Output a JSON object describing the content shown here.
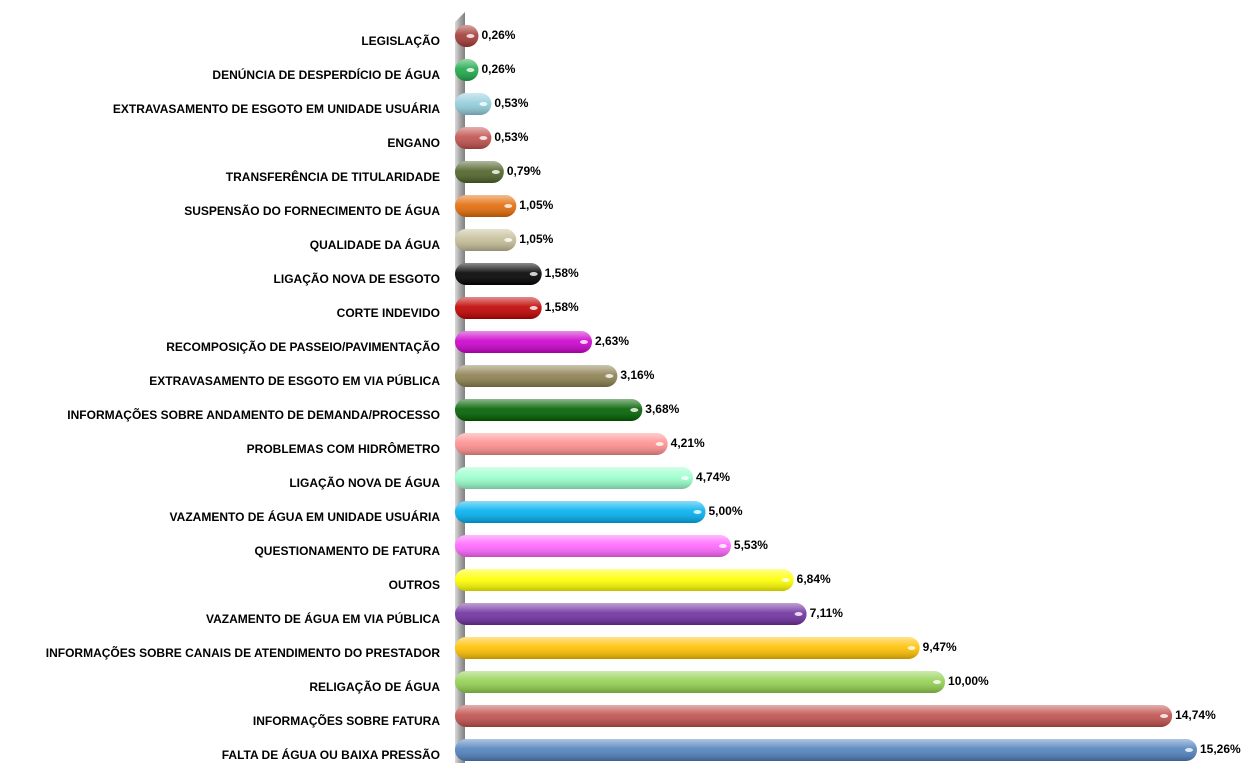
{
  "chart_data": {
    "type": "bar",
    "orientation": "horizontal",
    "categories": [
      "LEGISLAÇÃO",
      "DENÚNCIA DE DESPERDÍCIO DE ÁGUA",
      "EXTRAVASAMENTO DE ESGOTO EM UNIDADE USUÁRIA",
      "ENGANO",
      "TRANSFERÊNCIA DE TITULARIDADE",
      "SUSPENSÃO DO FORNECIMENTO DE ÁGUA",
      "QUALIDADE DA ÁGUA",
      "LIGAÇÃO NOVA DE ESGOTO",
      "CORTE INDEVIDO",
      "RECOMPOSIÇÃO DE PASSEIO/PAVIMENTAÇÃO",
      "EXTRAVASAMENTO DE ESGOTO EM VIA PÚBLICA",
      "INFORMAÇÕES SOBRE ANDAMENTO DE DEMANDA/PROCESSO",
      "PROBLEMAS COM HIDRÔMETRO",
      "LIGAÇÃO NOVA DE ÁGUA",
      "VAZAMENTO DE ÁGUA EM UNIDADE USUÁRIA",
      "QUESTIONAMENTO DE FATURA",
      "OUTROS",
      "VAZAMENTO DE ÁGUA EM VIA PÚBLICA",
      "INFORMAÇÕES SOBRE CANAIS DE ATENDIMENTO DO PRESTADOR",
      "RELIGAÇÃO DE ÁGUA",
      "INFORMAÇÕES SOBRE FATURA",
      "FALTA DE ÁGUA OU BAIXA PRESSÃO"
    ],
    "values": [
      0.26,
      0.26,
      0.53,
      0.53,
      0.79,
      1.05,
      1.05,
      1.58,
      1.58,
      2.63,
      3.16,
      3.68,
      4.21,
      4.74,
      5.0,
      5.53,
      6.84,
      7.11,
      9.47,
      10.0,
      14.74,
      15.26
    ],
    "value_labels": [
      "0,26%",
      "0,26%",
      "0,53%",
      "0,53%",
      "0,79%",
      "1,05%",
      "1,05%",
      "1,58%",
      "1,58%",
      "2,63%",
      "3,16%",
      "3,68%",
      "4,21%",
      "4,74%",
      "5,00%",
      "5,53%",
      "6,84%",
      "7,11%",
      "9,47%",
      "10,00%",
      "14,74%",
      "15,26%"
    ],
    "colors": [
      "#a33a36",
      "#1ea94a",
      "#92cddc",
      "#c0504d",
      "#4f6228",
      "#e36c09",
      "#c4bd97",
      "#000000",
      "#c00000",
      "#cc00cc",
      "#8c8050",
      "#006100",
      "#ff8f8f",
      "#99ffcc",
      "#00b0f0",
      "#ff66ff",
      "#ffff00",
      "#7030a0",
      "#ffc000",
      "#92d050",
      "#c0504d",
      "#4f81bd"
    ]
  }
}
